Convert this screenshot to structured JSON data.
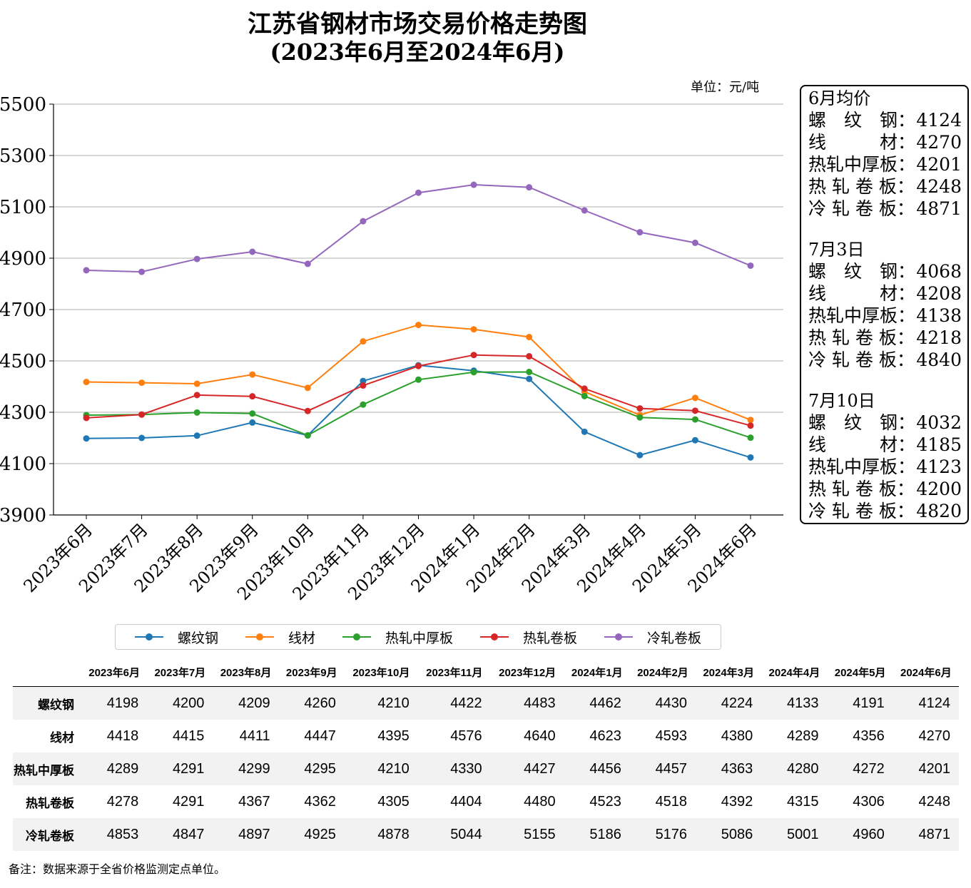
{
  "title_line1": "江苏省钢材市场交易价格走势图",
  "title_line2": "(2023年6月至2024年6月)",
  "unit": "单位：元/吨",
  "colors": {
    "螺纹钢": "#1f77b4",
    "线材": "#ff7f0e",
    "热轧中厚板": "#2ca02c",
    "热轧卷板": "#d62728",
    "冷轧卷板": "#9467bd",
    "grid": "#b0b0b0"
  },
  "chart_data": {
    "type": "line",
    "categories": [
      "2023年6月",
      "2023年7月",
      "2023年8月",
      "2023年9月",
      "2023年10月",
      "2023年11月",
      "2023年12月",
      "2024年1月",
      "2024年2月",
      "2024年3月",
      "2024年4月",
      "2024年5月",
      "2024年6月"
    ],
    "series": [
      {
        "name": "螺纹钢",
        "values": [
          4198,
          4200,
          4209,
          4260,
          4210,
          4422,
          4483,
          4462,
          4430,
          4224,
          4133,
          4191,
          4124
        ]
      },
      {
        "name": "线材",
        "values": [
          4418,
          4415,
          4411,
          4447,
          4395,
          4576,
          4640,
          4623,
          4593,
          4380,
          4289,
          4356,
          4270
        ]
      },
      {
        "name": "热轧中厚板",
        "values": [
          4289,
          4291,
          4299,
          4295,
          4210,
          4330,
          4427,
          4456,
          4457,
          4363,
          4280,
          4272,
          4201
        ]
      },
      {
        "name": "热轧卷板",
        "values": [
          4278,
          4291,
          4367,
          4362,
          4305,
          4404,
          4480,
          4523,
          4518,
          4392,
          4315,
          4306,
          4248
        ]
      },
      {
        "name": "冷轧卷板",
        "values": [
          4853,
          4847,
          4897,
          4925,
          4878,
          5044,
          5155,
          5186,
          5176,
          5086,
          5001,
          4960,
          4871
        ]
      }
    ],
    "ylim": [
      3900,
      5500
    ],
    "yticks": [
      3900,
      4100,
      4300,
      4500,
      4700,
      4900,
      5100,
      5300,
      5500
    ],
    "grid": "horizontal",
    "legend": "bottom"
  },
  "info_box": [
    {
      "heading": "6月均价",
      "rows": [
        [
          "螺　纹　钢：",
          "4124"
        ],
        [
          "线　　　材：",
          "4270"
        ],
        [
          "热轧中厚板：",
          "4201"
        ],
        [
          "热 轧 卷 板：",
          "4248"
        ],
        [
          "冷 轧 卷 板：",
          "4871"
        ]
      ]
    },
    {
      "heading": "7月3日",
      "rows": [
        [
          "螺　纹　钢：",
          "4068"
        ],
        [
          "线　　　材：",
          "4208"
        ],
        [
          "热轧中厚板：",
          "4138"
        ],
        [
          "热 轧 卷 板：",
          "4218"
        ],
        [
          "冷 轧 卷 板：",
          "4840"
        ]
      ]
    },
    {
      "heading": "7月10日",
      "rows": [
        [
          "螺　纹　钢：",
          "4032"
        ],
        [
          "线　　　材：",
          "4185"
        ],
        [
          "热轧中厚板：",
          "4123"
        ],
        [
          "热 轧 卷 板：",
          "4200"
        ],
        [
          "冷 轧 卷 板：",
          "4820"
        ]
      ]
    }
  ],
  "table": {
    "row_labels": [
      "螺纹钢",
      "线材",
      "热轧中厚板",
      "热轧卷板",
      "冷轧卷板"
    ]
  },
  "note": "备注：数据来源于全省价格监测定点单位。"
}
